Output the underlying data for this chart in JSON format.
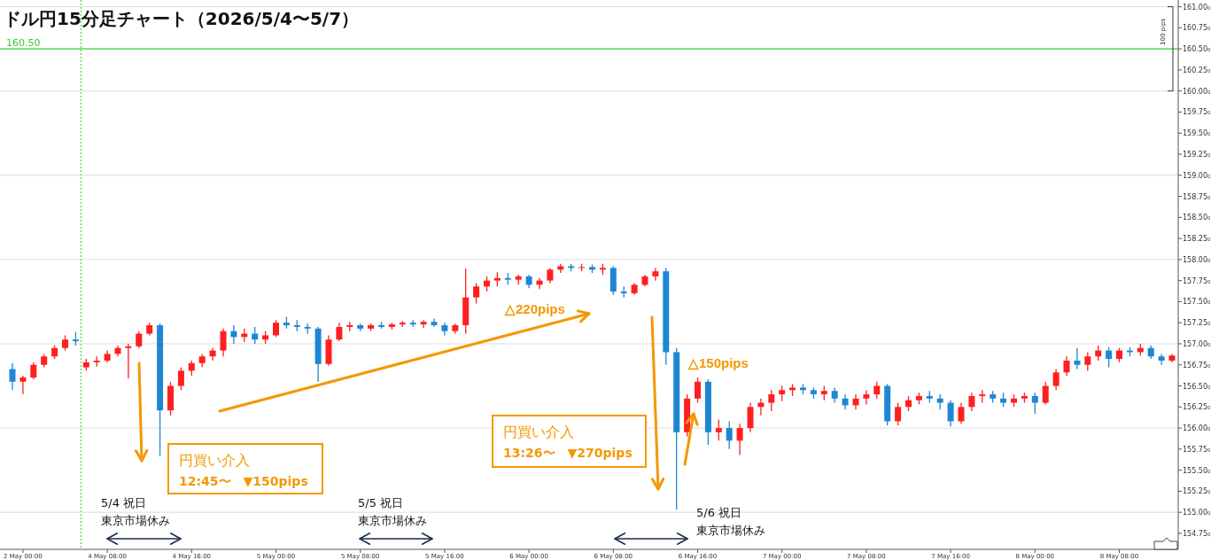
{
  "chart_data": {
    "type": "candlestick",
    "title": "ドル円15分足チャート（2026/5/4〜5/7）",
    "categories": [
      null,
      "2 May 00:00",
      null,
      null,
      null,
      null,
      null,
      null,
      null,
      "4 May 08:00",
      null,
      null,
      null,
      null,
      null,
      null,
      null,
      "4 May 16:00",
      null,
      null,
      null,
      null,
      null,
      null,
      null,
      "5 May 00:00",
      null,
      null,
      null,
      null,
      null,
      null,
      null,
      "5 May 08:00",
      null,
      null,
      null,
      null,
      null,
      null,
      null,
      "5 May 16:00",
      null,
      null,
      null,
      null,
      null,
      null,
      null,
      "6 May 00:00",
      null,
      null,
      null,
      null,
      null,
      null,
      null,
      "6 May 08:00",
      null,
      null,
      null,
      null,
      null,
      null,
      null,
      "6 May 16:00",
      null,
      null,
      null,
      null,
      null,
      null,
      null,
      "7 May 00:00",
      null,
      null,
      null,
      null,
      null,
      null,
      null,
      "7 May 08:00",
      null,
      null,
      null,
      null,
      null,
      null,
      null,
      "7 May 16:00",
      null,
      null,
      null,
      null,
      null,
      null,
      null,
      "8 May 00:00",
      null,
      null,
      null,
      null,
      null,
      null,
      null,
      "8 May 08:00",
      null,
      null,
      null,
      null,
      null
    ],
    "ohlc": [
      [
        156.7,
        156.77,
        156.45,
        156.55
      ],
      [
        156.55,
        156.62,
        156.4,
        156.6
      ],
      [
        156.6,
        156.78,
        156.58,
        156.75
      ],
      [
        156.75,
        156.88,
        156.72,
        156.85
      ],
      [
        156.85,
        156.98,
        156.82,
        156.95
      ],
      [
        156.95,
        157.1,
        156.92,
        157.05
      ],
      [
        157.05,
        157.14,
        156.98,
        157.03
      ],
      [
        156.72,
        156.82,
        156.68,
        156.78
      ],
      [
        156.78,
        156.85,
        156.73,
        156.8
      ],
      [
        156.8,
        156.92,
        156.78,
        156.88
      ],
      [
        156.88,
        156.98,
        156.85,
        156.95
      ],
      [
        156.95,
        157.0,
        156.59,
        156.97
      ],
      [
        156.97,
        157.15,
        156.95,
        157.12
      ],
      [
        157.12,
        157.25,
        157.1,
        157.22
      ],
      [
        157.22,
        157.24,
        155.67,
        156.21
      ],
      [
        156.21,
        156.55,
        156.15,
        156.5
      ],
      [
        156.5,
        156.72,
        156.45,
        156.68
      ],
      [
        156.68,
        156.8,
        156.62,
        156.77
      ],
      [
        156.77,
        156.88,
        156.72,
        156.85
      ],
      [
        156.85,
        156.95,
        156.8,
        156.92
      ],
      [
        156.92,
        157.18,
        156.85,
        157.15
      ],
      [
        157.15,
        157.22,
        157.0,
        157.08
      ],
      [
        157.08,
        157.18,
        157.02,
        157.12
      ],
      [
        157.12,
        157.2,
        157.0,
        157.05
      ],
      [
        157.05,
        157.15,
        157.0,
        157.1
      ],
      [
        157.1,
        157.28,
        157.08,
        157.25
      ],
      [
        157.25,
        157.32,
        157.18,
        157.22
      ],
      [
        157.22,
        157.28,
        157.15,
        157.2
      ],
      [
        157.2,
        157.24,
        157.12,
        157.18
      ],
      [
        157.18,
        157.2,
        156.55,
        156.76
      ],
      [
        156.76,
        157.1,
        156.74,
        157.05
      ],
      [
        157.05,
        157.25,
        157.03,
        157.2
      ],
      [
        157.2,
        157.26,
        157.15,
        157.22
      ],
      [
        157.22,
        157.24,
        157.15,
        157.18
      ],
      [
        157.18,
        157.24,
        157.15,
        157.22
      ],
      [
        157.22,
        157.26,
        157.18,
        157.2
      ],
      [
        157.2,
        157.25,
        157.17,
        157.23
      ],
      [
        157.23,
        157.27,
        157.2,
        157.25
      ],
      [
        157.25,
        157.28,
        157.2,
        157.23
      ],
      [
        157.23,
        157.28,
        157.19,
        157.26
      ],
      [
        157.26,
        157.3,
        157.2,
        157.22
      ],
      [
        157.22,
        157.25,
        157.1,
        157.15
      ],
      [
        157.15,
        157.24,
        157.12,
        157.22
      ],
      [
        157.22,
        157.89,
        157.12,
        157.55
      ],
      [
        157.55,
        157.72,
        157.48,
        157.68
      ],
      [
        157.68,
        157.8,
        157.62,
        157.75
      ],
      [
        157.75,
        157.85,
        157.68,
        157.78
      ],
      [
        157.78,
        157.84,
        157.7,
        157.76
      ],
      [
        157.76,
        157.82,
        157.7,
        157.8
      ],
      [
        157.8,
        157.82,
        157.66,
        157.7
      ],
      [
        157.7,
        157.78,
        157.65,
        157.75
      ],
      [
        157.75,
        157.9,
        157.72,
        157.88
      ],
      [
        157.88,
        157.95,
        157.84,
        157.92
      ],
      [
        157.92,
        157.95,
        157.86,
        157.9
      ],
      [
        157.9,
        157.95,
        157.86,
        157.91
      ],
      [
        157.91,
        157.94,
        157.84,
        157.88
      ],
      [
        157.88,
        157.95,
        157.82,
        157.9
      ],
      [
        157.9,
        157.92,
        157.58,
        157.62
      ],
      [
        157.62,
        157.68,
        157.55,
        157.6
      ],
      [
        157.6,
        157.72,
        157.58,
        157.7
      ],
      [
        157.7,
        157.82,
        157.68,
        157.8
      ],
      [
        157.8,
        157.9,
        157.75,
        157.86
      ],
      [
        157.86,
        157.9,
        156.75,
        156.9
      ],
      [
        156.9,
        156.95,
        155.03,
        155.95
      ],
      [
        155.95,
        156.4,
        155.9,
        156.35
      ],
      [
        156.35,
        156.6,
        156.3,
        156.55
      ],
      [
        156.55,
        156.58,
        155.8,
        155.95
      ],
      [
        155.95,
        156.1,
        155.85,
        156.0
      ],
      [
        156.0,
        156.08,
        155.75,
        155.85
      ],
      [
        155.85,
        156.05,
        155.68,
        156.0
      ],
      [
        156.0,
        156.3,
        155.95,
        156.25
      ],
      [
        156.25,
        156.35,
        156.15,
        156.3
      ],
      [
        156.3,
        156.45,
        156.2,
        156.4
      ],
      [
        156.4,
        156.5,
        156.32,
        156.45
      ],
      [
        156.45,
        156.52,
        156.38,
        156.48
      ],
      [
        156.48,
        156.52,
        156.4,
        156.45
      ],
      [
        156.45,
        156.48,
        156.35,
        156.4
      ],
      [
        156.4,
        156.5,
        156.33,
        156.44
      ],
      [
        156.44,
        156.48,
        156.3,
        156.35
      ],
      [
        156.35,
        156.4,
        156.22,
        156.27
      ],
      [
        156.27,
        156.4,
        156.22,
        156.35
      ],
      [
        156.35,
        156.45,
        156.28,
        156.4
      ],
      [
        156.4,
        156.55,
        156.35,
        156.5
      ],
      [
        156.5,
        156.52,
        156.03,
        156.08
      ],
      [
        156.08,
        156.3,
        156.03,
        156.25
      ],
      [
        156.25,
        156.38,
        156.2,
        156.33
      ],
      [
        156.33,
        156.42,
        156.28,
        156.38
      ],
      [
        156.38,
        156.44,
        156.3,
        156.35
      ],
      [
        156.35,
        156.4,
        156.22,
        156.3
      ],
      [
        156.3,
        156.33,
        156.02,
        156.08
      ],
      [
        156.08,
        156.3,
        156.05,
        156.25
      ],
      [
        156.25,
        156.42,
        156.2,
        156.38
      ],
      [
        156.38,
        156.45,
        156.3,
        156.4
      ],
      [
        156.4,
        156.44,
        156.3,
        156.35
      ],
      [
        156.35,
        156.42,
        156.25,
        156.3
      ],
      [
        156.3,
        156.4,
        156.25,
        156.35
      ],
      [
        156.35,
        156.42,
        156.3,
        156.38
      ],
      [
        156.38,
        156.42,
        156.17,
        156.3
      ],
      [
        156.3,
        156.55,
        156.28,
        156.5
      ],
      [
        156.5,
        156.7,
        156.45,
        156.66
      ],
      [
        156.66,
        156.85,
        156.62,
        156.8
      ],
      [
        156.8,
        156.95,
        156.7,
        156.75
      ],
      [
        156.75,
        156.9,
        156.68,
        156.85
      ],
      [
        156.85,
        156.98,
        156.8,
        156.92
      ],
      [
        156.92,
        156.96,
        156.72,
        156.82
      ],
      [
        156.82,
        156.95,
        156.78,
        156.92
      ],
      [
        156.92,
        156.96,
        156.85,
        156.9
      ],
      [
        156.9,
        157.0,
        156.86,
        156.95
      ],
      [
        156.95,
        156.98,
        156.82,
        156.85
      ],
      [
        156.85,
        156.88,
        156.75,
        156.8
      ],
      [
        156.8,
        156.88,
        156.78,
        156.86
      ]
    ],
    "colors": [
      "#1f86d4",
      "#ff1f1f",
      "#ff1f1f",
      "#ff1f1f",
      "#ff1f1f",
      "#ff1f1f",
      "#1f86d4",
      "#ff1f1f",
      "#ff1f1f",
      "#ff1f1f",
      "#ff1f1f",
      "#ff1f1f",
      "#ff1f1f",
      "#ff1f1f",
      "#1f86d4",
      "#ff1f1f",
      "#ff1f1f",
      "#ff1f1f",
      "#ff1f1f",
      "#ff1f1f",
      "#ff1f1f",
      "#1f86d4",
      "#ff1f1f",
      "#1f86d4",
      "#ff1f1f",
      "#ff1f1f",
      "#1f86d4",
      "#1f86d4",
      "#1f86d4",
      "#1f86d4",
      "#ff1f1f",
      "#ff1f1f",
      "#ff1f1f",
      "#1f86d4",
      "#ff1f1f",
      "#1f86d4",
      "#ff1f1f",
      "#ff1f1f",
      "#1f86d4",
      "#ff1f1f",
      "#1f86d4",
      "#1f86d4",
      "#ff1f1f",
      "#ff1f1f",
      "#ff1f1f",
      "#ff1f1f",
      "#ff1f1f",
      "#1f86d4",
      "#ff1f1f",
      "#1f86d4",
      "#ff1f1f",
      "#ff1f1f",
      "#ff1f1f",
      "#1f86d4",
      "#ff1f1f",
      "#1f86d4",
      "#ff1f1f",
      "#1f86d4",
      "#1f86d4",
      "#ff1f1f",
      "#ff1f1f",
      "#ff1f1f",
      "#1f86d4",
      "#1f86d4",
      "#ff1f1f",
      "#ff1f1f",
      "#1f86d4",
      "#ff1f1f",
      "#1f86d4",
      "#ff1f1f",
      "#ff1f1f",
      "#ff1f1f",
      "#ff1f1f",
      "#ff1f1f",
      "#ff1f1f",
      "#1f86d4",
      "#1f86d4",
      "#ff1f1f",
      "#1f86d4",
      "#1f86d4",
      "#ff1f1f",
      "#ff1f1f",
      "#ff1f1f",
      "#1f86d4",
      "#ff1f1f",
      "#ff1f1f",
      "#ff1f1f",
      "#1f86d4",
      "#1f86d4",
      "#1f86d4",
      "#ff1f1f",
      "#ff1f1f",
      "#ff1f1f",
      "#1f86d4",
      "#1f86d4",
      "#ff1f1f",
      "#ff1f1f",
      "#1f86d4",
      "#ff1f1f",
      "#ff1f1f",
      "#ff1f1f",
      "#1f86d4",
      "#ff1f1f",
      "#ff1f1f",
      "#1f86d4",
      "#ff1f1f",
      "#1f86d4",
      "#ff1f1f",
      "#1f86d4",
      "#1f86d4",
      "#ff1f1f"
    ],
    "ylim": [
      154.56,
      161.08
    ],
    "yticks": [
      {
        "value": 154.75,
        "label": "154.75₀"
      },
      {
        "value": 155,
        "label": "155.00₀"
      },
      {
        "value": 155.25,
        "label": "155.25₀"
      },
      {
        "value": 155.5,
        "label": "155.50₀"
      },
      {
        "value": 155.75,
        "label": "155.75₀"
      },
      {
        "value": 156,
        "label": "156.00₀"
      },
      {
        "value": 156.25,
        "label": "156.25₀"
      },
      {
        "value": 156.5,
        "label": "156.50₀"
      },
      {
        "value": 156.75,
        "label": "156.75₀"
      },
      {
        "value": 157,
        "label": "157.00₀"
      },
      {
        "value": 157.25,
        "label": "157.25₀"
      },
      {
        "value": 157.5,
        "label": "157.50₀"
      },
      {
        "value": 157.75,
        "label": "157.75₀"
      },
      {
        "value": 158,
        "label": "158.00₀"
      },
      {
        "value": 158.25,
        "label": "158.25₀"
      },
      {
        "value": 158.5,
        "label": "158.50₀"
      },
      {
        "value": 158.75,
        "label": "158.75₀"
      },
      {
        "value": 159,
        "label": "159.00₀"
      },
      {
        "value": 159.25,
        "label": "159.25₀"
      },
      {
        "value": 159.5,
        "label": "159.50₀"
      },
      {
        "value": 159.75,
        "label": "159.75₀"
      },
      {
        "value": 160,
        "label": "160.00₀"
      },
      {
        "value": 160.25,
        "label": "160.25₀"
      },
      {
        "value": 160.5,
        "label": "160.50₀"
      },
      {
        "value": 160.75,
        "label": "160.75₀"
      },
      {
        "value": 161,
        "label": "161.00₀"
      }
    ],
    "grid": "y",
    "ref_lines": [
      {
        "axis": "y",
        "value": 160.5,
        "label": "160.50",
        "color": "#33cc33"
      }
    ],
    "annotations": [
      "△220pips",
      "△150pips",
      "円買い介入\n12:45〜　▼150pips",
      "円買い介入\n13:26〜　▼270pips",
      "5/4 祝日",
      "東京市場休み",
      "5/5 祝日",
      "東京市場休み",
      "5/6 祝日",
      "東京市場休み",
      "100 pips"
    ]
  }
}
